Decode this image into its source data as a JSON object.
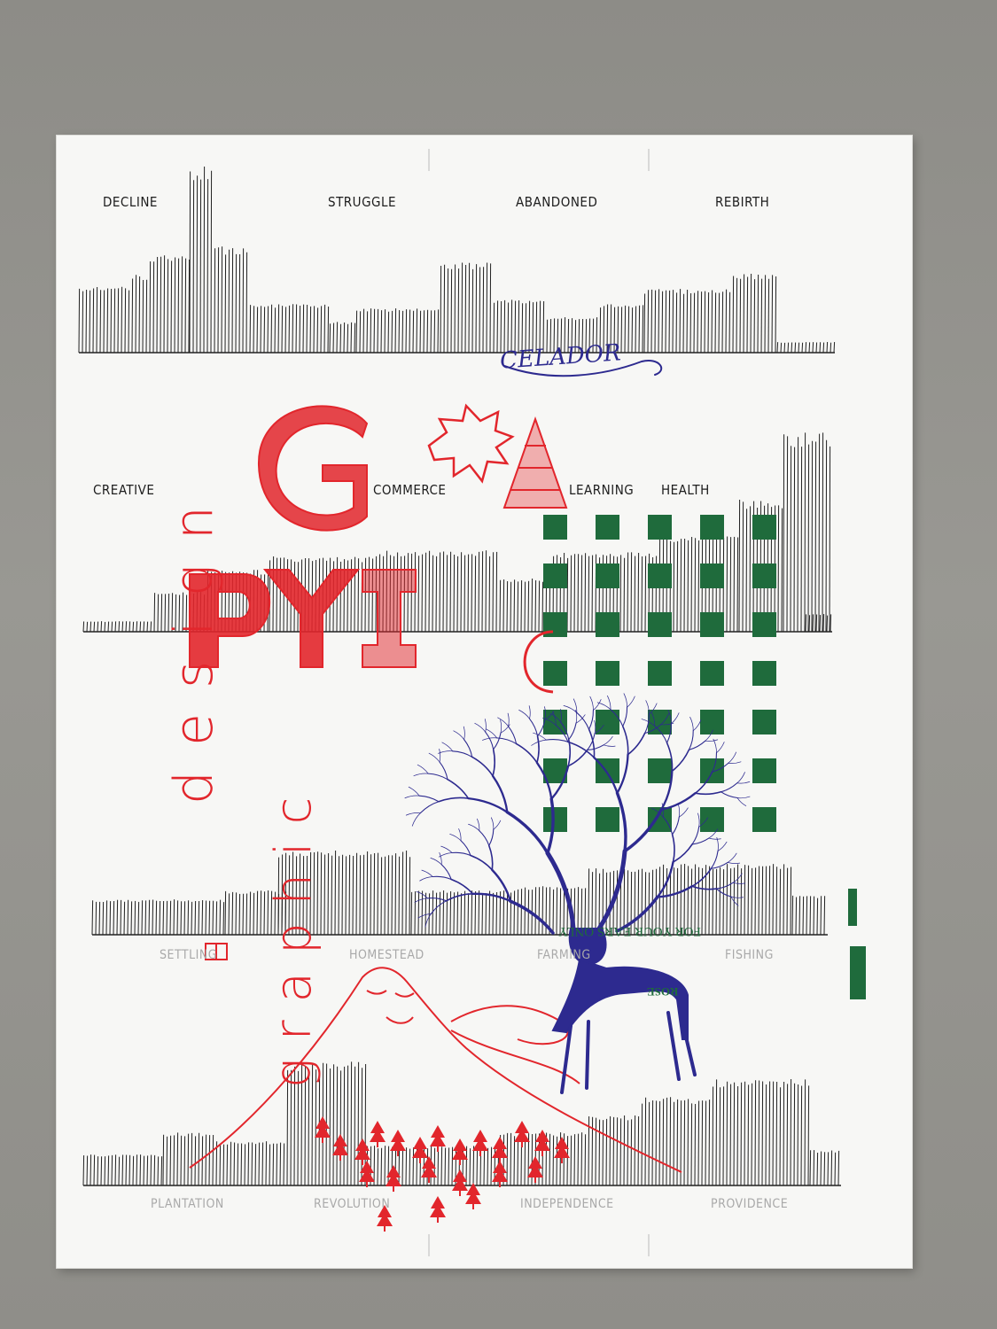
{
  "poster": {
    "top_labels": [
      "DECLINE",
      "STRUGGLE",
      "ABANDONED",
      "REBIRTH"
    ],
    "middle_labels": [
      "CREATIVE",
      "COMMERCE",
      "LEARNING",
      "HEALTH"
    ],
    "lower_labels": [
      "SETTLING",
      "HOMESTEAD",
      "FARMING",
      "FISHING"
    ],
    "bottom_labels": [
      "PLANTATION",
      "REVOLUTION",
      "INDEPENDENCE",
      "PROVIDENCE"
    ],
    "script_text": "CELADOR",
    "design_word": "design",
    "graphic_word": "graphic",
    "green_stamp_text": "FOR YOUR EARS ONLY",
    "green_stamp_small": "ROSE",
    "colors": {
      "ink_red": "#e2262c",
      "ink_blue": "#2d2a8f",
      "ink_green": "#1f6b3c",
      "ink_black": "#1d1d1d",
      "paper": "#f7f7f5",
      "wall": "#959490"
    }
  }
}
